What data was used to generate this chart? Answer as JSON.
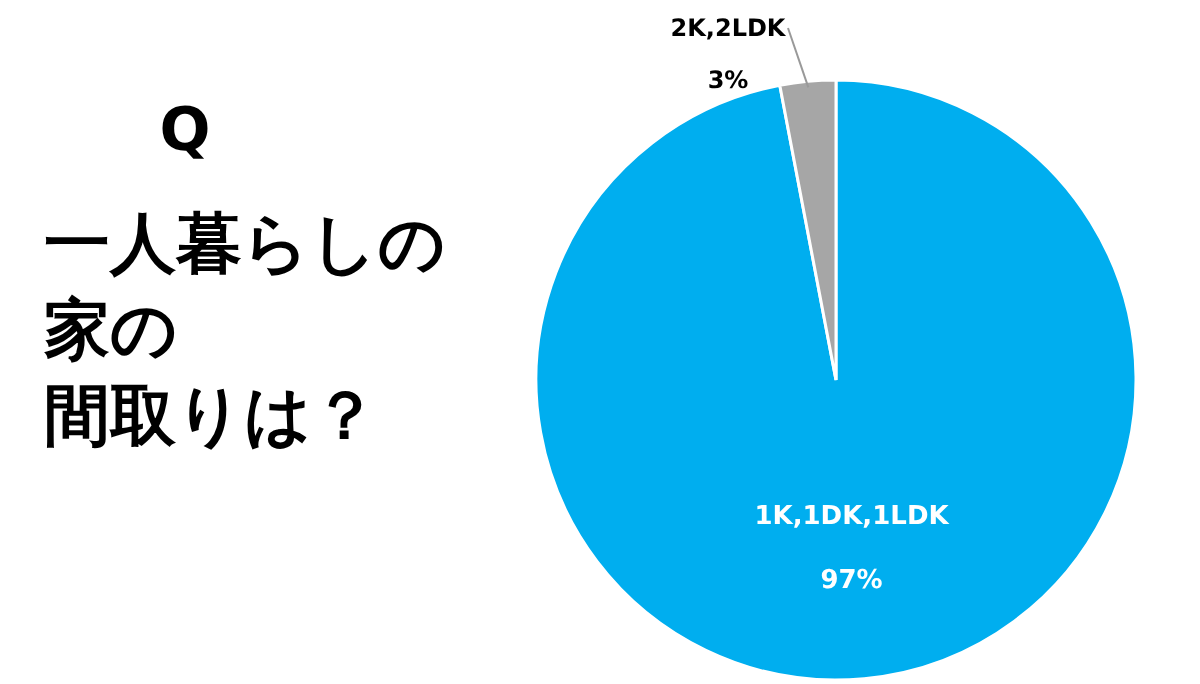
{
  "chart_data": {
    "type": "pie",
    "title": "Q",
    "annotations": [
      "一人暮らしの",
      "家の",
      "間取りは？"
    ],
    "categories": [
      "1K,1DK,1LDK",
      "2K,2LDK"
    ],
    "values": [
      97,
      3
    ],
    "value_labels": [
      "97%",
      "3%"
    ],
    "colors": [
      "#00aeef",
      "#a6a6a6"
    ]
  }
}
